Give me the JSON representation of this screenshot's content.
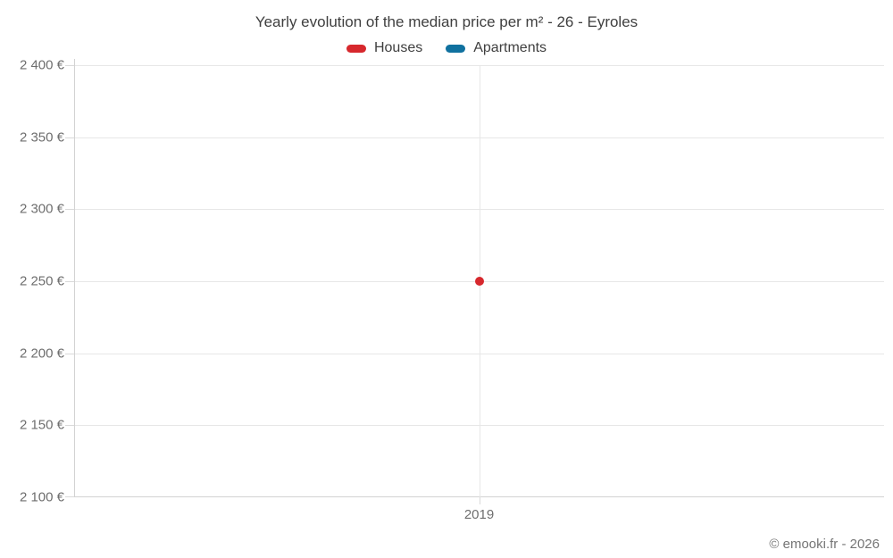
{
  "chart_data": {
    "type": "scatter",
    "title": "Yearly evolution of the median price per m² - 26 - Eyroles",
    "xlabel": "",
    "ylabel": "",
    "ylim": [
      2100,
      2400
    ],
    "ytick_step": 50,
    "grid": true,
    "legend_position": "top",
    "yticks": [
      {
        "value": 2400,
        "label": "2 400 €"
      },
      {
        "value": 2350,
        "label": "2 350 €"
      },
      {
        "value": 2300,
        "label": "2 300 €"
      },
      {
        "value": 2250,
        "label": "2 250 €"
      },
      {
        "value": 2200,
        "label": "2 200 €"
      },
      {
        "value": 2150,
        "label": "2 150 €"
      },
      {
        "value": 2100,
        "label": "2 100 €"
      }
    ],
    "xticks": [
      {
        "value": 2019,
        "label": "2019"
      }
    ],
    "series": [
      {
        "name": "Houses",
        "color": "#d7282d",
        "points": [
          {
            "x": 2019,
            "y": 2250
          }
        ]
      },
      {
        "name": "Apartments",
        "color": "#10719f",
        "points": []
      }
    ]
  },
  "footer": {
    "copyright": "© emooki.fr - 2026"
  }
}
